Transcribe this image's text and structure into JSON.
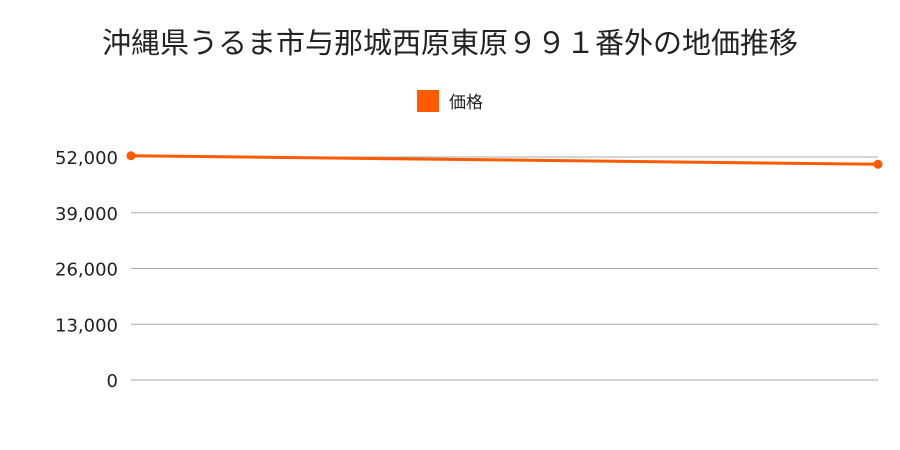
{
  "chart_data": {
    "type": "line",
    "title": "沖縄県うるま市与那城西原東原９９１番外の地価推移",
    "series": [
      {
        "name": "価格",
        "color": "#ff5a00",
        "values": [
          52300,
          50300
        ]
      }
    ],
    "x": [
      "",
      ""
    ],
    "yticks": [
      0,
      13000,
      26000,
      39000,
      52000
    ],
    "ytick_labels": [
      "0",
      "13,000",
      "26,000",
      "39,000",
      "52,000"
    ],
    "ylim": [
      0,
      52000
    ],
    "grid": true,
    "legend": "top-center"
  }
}
